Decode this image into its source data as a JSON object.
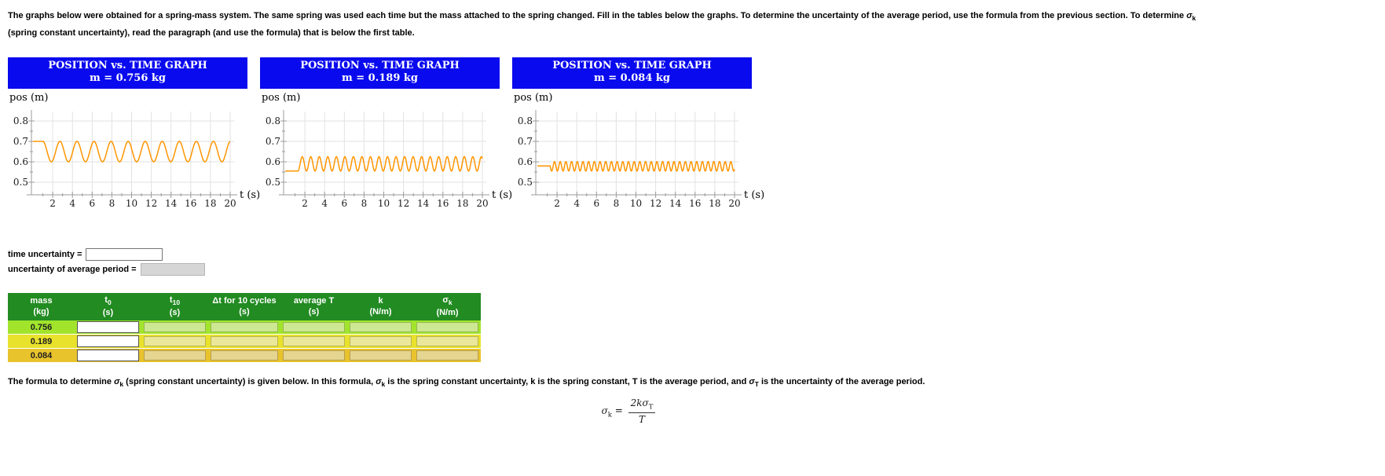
{
  "colors": {
    "graph_header_bg": "#0a0aee",
    "table_header_bg": "#228B22",
    "wave_orange": "#ff9500",
    "row_bands": [
      "#a2e42c",
      "#e8e22c",
      "#e8c32c"
    ],
    "row_cell_fills": [
      "#cde793",
      "#eae79b",
      "#e4d591"
    ],
    "readonly_grey": "#d6d6d6"
  },
  "intro": {
    "segments": [
      {
        "t": "The graphs below were obtained for a spring-mass system. The same spring was used each time but the mass attached to the spring changed. Fill in the tables below the graphs. To determine the uncertainty of the average period, use the formula from the previous section. To determine "
      },
      {
        "t": "σ",
        "i": true
      },
      {
        "t": "k",
        "sub": true
      },
      {
        "t": " (spring constant uncertainty), read the paragraph (and use the formula) that is below the first table."
      }
    ]
  },
  "chart_data": [
    {
      "type": "line",
      "title_line1": "POSITION vs. TIME GRAPH",
      "title_line2": "m = 0.756 kg",
      "ylabel": "pos (m)",
      "xlabel": "t (s)",
      "xlim": [
        0,
        20
      ],
      "ylim": [
        0.45,
        0.85
      ],
      "xticks": [
        2,
        4,
        6,
        8,
        10,
        12,
        14,
        16,
        18,
        20
      ],
      "yticks": [
        0.5,
        0.6,
        0.7,
        0.8
      ],
      "grid": true,
      "wave": {
        "flat_until": 1.0,
        "flat_value": 0.7,
        "equilibrium": 0.65,
        "amplitude": 0.05,
        "period": 1.73,
        "phase": 0
      }
    },
    {
      "type": "line",
      "title_line1": "POSITION vs. TIME GRAPH",
      "title_line2": "m = 0.189 kg",
      "ylabel": "pos (m)",
      "xlabel": "t (s)",
      "xlim": [
        0,
        20
      ],
      "ylim": [
        0.45,
        0.85
      ],
      "xticks": [
        2,
        4,
        6,
        8,
        10,
        12,
        14,
        16,
        18,
        20
      ],
      "yticks": [
        0.5,
        0.6,
        0.7,
        0.8
      ],
      "grid": true,
      "wave": {
        "flat_until": 1.3,
        "flat_value": 0.555,
        "equilibrium": 0.59,
        "amplitude": 0.035,
        "period": 0.865,
        "phase": 3.14159
      }
    },
    {
      "type": "line",
      "title_line1": "POSITION vs. TIME GRAPH",
      "title_line2": "m = 0.084 kg",
      "ylabel": "pos (m)",
      "xlabel": "t (s)",
      "xlim": [
        0,
        20
      ],
      "ylim": [
        0.45,
        0.85
      ],
      "xticks": [
        2,
        4,
        6,
        8,
        10,
        12,
        14,
        16,
        18,
        20
      ],
      "yticks": [
        0.5,
        0.6,
        0.7,
        0.8
      ],
      "grid": true,
      "wave": {
        "flat_until": 1.3,
        "flat_value": 0.58,
        "equilibrium": 0.578,
        "amplitude": 0.023,
        "period": 0.577,
        "phase": 1.48
      }
    }
  ],
  "uncertainty": {
    "time_label": "time uncertainty =",
    "time_value": "",
    "avg_label": "uncertainty of average period =",
    "avg_value": ""
  },
  "table": {
    "headers": [
      {
        "line1": [
          {
            "t": "mass"
          }
        ],
        "line2": "(kg)"
      },
      {
        "line1": [
          {
            "t": "t"
          },
          {
            "t": "0",
            "sub": true
          }
        ],
        "line2": "(s)"
      },
      {
        "line1": [
          {
            "t": "t"
          },
          {
            "t": "10",
            "sub": true
          }
        ],
        "line2": "(s)"
      },
      {
        "line1": [
          {
            "t": "Δt for 10 cycles"
          }
        ],
        "line2": "(s)"
      },
      {
        "line1": [
          {
            "t": "average T"
          }
        ],
        "line2": "(s)"
      },
      {
        "line1": [
          {
            "t": "k"
          }
        ],
        "line2": "(N/m)"
      },
      {
        "line1": [
          {
            "t": "σ"
          },
          {
            "t": "k",
            "sub": true
          }
        ],
        "line2": "(N/m)"
      }
    ],
    "rows": [
      {
        "mass": "0.756",
        "t0": "",
        "t10": "",
        "dt10": "",
        "avgT": "",
        "k": "",
        "sigmak": ""
      },
      {
        "mass": "0.189",
        "t0": "",
        "t10": "",
        "dt10": "",
        "avgT": "",
        "k": "",
        "sigmak": ""
      },
      {
        "mass": "0.084",
        "t0": "",
        "t10": "",
        "dt10": "",
        "avgT": "",
        "k": "",
        "sigmak": ""
      }
    ]
  },
  "bottom_paragraph": {
    "segments": [
      {
        "t": "The formula to determine "
      },
      {
        "t": "σ",
        "i": true
      },
      {
        "t": "k",
        "sub": true
      },
      {
        "t": " (spring constant uncertainty) is given below. In this formula, "
      },
      {
        "t": "σ",
        "i": true
      },
      {
        "t": "k",
        "sub": true
      },
      {
        "t": " is the spring constant uncertainty, k is the spring constant, T is the average period, and "
      },
      {
        "t": "σ",
        "i": true
      },
      {
        "t": "T",
        "sub": true
      },
      {
        "t": " is the uncertainty of the average period."
      }
    ]
  },
  "formula": {
    "sigma": "σ",
    "sigma_sub": "k",
    "equals": " = ",
    "numerator": "2kσ",
    "numerator_sub": "T",
    "denominator": "T"
  }
}
